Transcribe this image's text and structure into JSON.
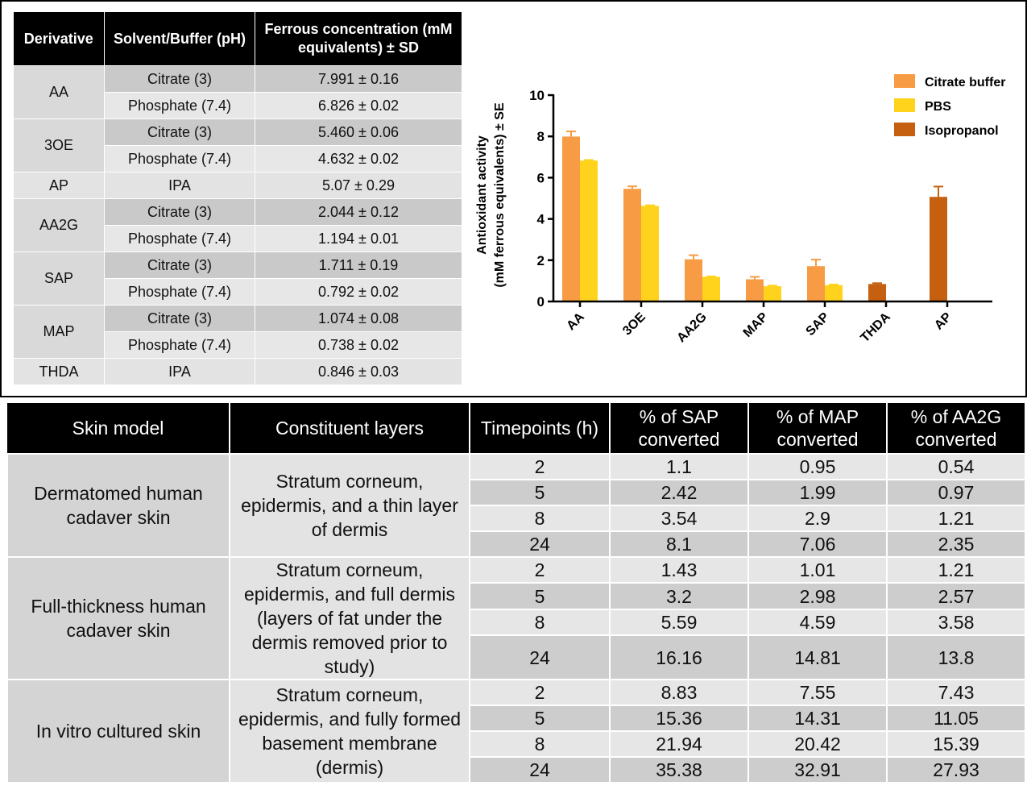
{
  "ferrous_table": {
    "headers": [
      "Derivative",
      "Solvent/Buffer (pH)",
      "Ferrous concentration (mM equivalents) ± SD"
    ],
    "groups": [
      {
        "derivative": "AA",
        "rows": [
          {
            "solvent": "Citrate (3)",
            "value": "7.991 ± 0.16"
          },
          {
            "solvent": "Phosphate (7.4)",
            "value": "6.826 ± 0.02"
          }
        ]
      },
      {
        "derivative": "3OE",
        "rows": [
          {
            "solvent": "Citrate (3)",
            "value": "5.460 ± 0.06"
          },
          {
            "solvent": "Phosphate (7.4)",
            "value": "4.632 ± 0.02"
          }
        ]
      },
      {
        "derivative": "AP",
        "rows": [
          {
            "solvent": "IPA",
            "value": "5.07 ± 0.29"
          }
        ]
      },
      {
        "derivative": "AA2G",
        "rows": [
          {
            "solvent": "Citrate (3)",
            "value": "2.044 ± 0.12"
          },
          {
            "solvent": "Phosphate (7.4)",
            "value": "1.194 ± 0.01"
          }
        ]
      },
      {
        "derivative": "SAP",
        "rows": [
          {
            "solvent": "Citrate (3)",
            "value": "1.711 ± 0.19"
          },
          {
            "solvent": "Phosphate (7.4)",
            "value": "0.792 ± 0.02"
          }
        ]
      },
      {
        "derivative": "MAP",
        "rows": [
          {
            "solvent": "Citrate (3)",
            "value": "1.074 ± 0.08"
          },
          {
            "solvent": "Phosphate (7.4)",
            "value": "0.738 ± 0.02"
          }
        ]
      },
      {
        "derivative": "THDA",
        "rows": [
          {
            "solvent": "IPA",
            "value": "0.846 ± 0.03"
          }
        ]
      }
    ]
  },
  "chart_data": {
    "type": "bar",
    "title": "",
    "xlabel": "",
    "ylabel_line1": "Antioxidant activity",
    "ylabel_line2": "(mM ferrous equivalents) ± SE",
    "ylim": [
      0,
      10
    ],
    "yticks": [
      "0",
      "2",
      "4",
      "6",
      "8",
      "10"
    ],
    "categories": [
      "AA",
      "3OE",
      "AA2G",
      "MAP",
      "SAP",
      "THDA",
      "AP"
    ],
    "legend_position": "top-right",
    "grid": false,
    "series": [
      {
        "name": "Citrate buffer",
        "color": "#F79C45",
        "values": [
          7.991,
          5.46,
          2.044,
          1.074,
          1.711,
          null,
          null
        ],
        "errors": [
          0.25,
          0.12,
          0.2,
          0.12,
          0.32,
          null,
          null
        ]
      },
      {
        "name": "PBS",
        "color": "#FFD21C",
        "values": [
          6.826,
          4.632,
          1.194,
          0.738,
          0.792,
          null,
          null
        ],
        "errors": [
          0.03,
          0.03,
          0.02,
          0.03,
          0.03,
          null,
          null
        ]
      },
      {
        "name": "Isopropanol",
        "color": "#C4600F",
        "values": [
          null,
          null,
          null,
          null,
          null,
          0.846,
          5.07
        ],
        "errors": [
          null,
          null,
          null,
          null,
          null,
          0.04,
          0.5
        ]
      }
    ]
  },
  "conversion_table": {
    "headers": [
      "Skin model",
      "Constituent layers",
      "Timepoints (h)",
      "% of SAP converted",
      "% of MAP converted",
      "% of AA2G converted"
    ],
    "groups": [
      {
        "model": "Dermatomed human cadaver skin",
        "layers": "Stratum corneum, epidermis, and a thin layer of dermis",
        "rows": [
          [
            "2",
            "1.1",
            "0.95",
            "0.54"
          ],
          [
            "5",
            "2.42",
            "1.99",
            "0.97"
          ],
          [
            "8",
            "3.54",
            "2.9",
            "1.21"
          ],
          [
            "24",
            "8.1",
            "7.06",
            "2.35"
          ]
        ]
      },
      {
        "model": "Full-thickness human cadaver skin",
        "layers": "Stratum corneum, epidermis, and full dermis (layers of fat under the dermis removed prior to study)",
        "rows": [
          [
            "2",
            "1.43",
            "1.01",
            "1.21"
          ],
          [
            "5",
            "3.2",
            "2.98",
            "2.57"
          ],
          [
            "8",
            "5.59",
            "4.59",
            "3.58"
          ],
          [
            "24",
            "16.16",
            "14.81",
            "13.8"
          ]
        ]
      },
      {
        "model": "In vitro cultured skin",
        "layers": "Stratum corneum, epidermis, and fully formed basement membrane (dermis)",
        "rows": [
          [
            "2",
            "8.83",
            "7.55",
            "7.43"
          ],
          [
            "5",
            "15.36",
            "14.31",
            "11.05"
          ],
          [
            "8",
            "21.94",
            "20.42",
            "15.39"
          ],
          [
            "24",
            "35.38",
            "32.91",
            "27.93"
          ]
        ]
      }
    ]
  }
}
